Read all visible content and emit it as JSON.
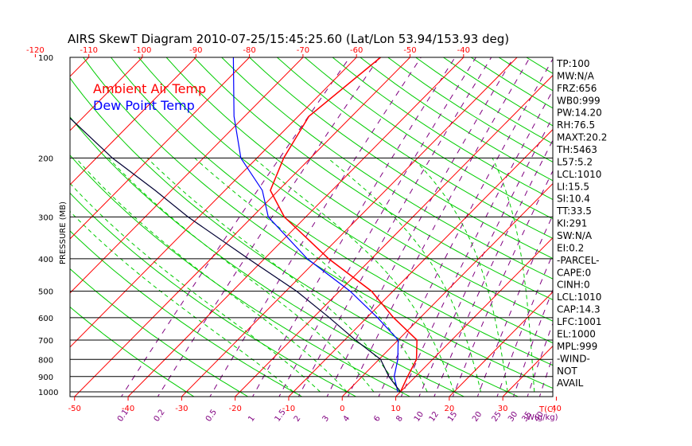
{
  "chart_data": {
    "type": "line",
    "title": "AIRS SkewT Diagram 2010-07-25/15:45:25.60 (Lat/Lon 53.94/153.93 deg)",
    "ylabel": "PRESSURE (MB)",
    "xlabel_bottom": "T(C)",
    "mixing_label": "W(g/kg)",
    "pressure_ticks": [
      100,
      200,
      300,
      400,
      500,
      600,
      700,
      800,
      900,
      1000
    ],
    "bottom_temp_ticks": [
      -50,
      -40,
      -30,
      -20,
      -10,
      0,
      10,
      20,
      30,
      40
    ],
    "top_temp_ticks": [
      -120,
      -110,
      -100,
      -90,
      -80,
      -70,
      -60,
      -50,
      -40
    ],
    "mixing_ratio_ticks": [
      "0.1",
      "0.2",
      "0.5",
      "1",
      "1.5",
      "2",
      "3",
      "4",
      "6",
      "8",
      "10",
      "12",
      "15",
      "20",
      "25",
      "30",
      "35",
      "40"
    ],
    "legend": [
      {
        "label": "Ambient Air Temp",
        "color": "#ff0000"
      },
      {
        "label": "Dew Point Temp",
        "color": "#0000ff"
      }
    ],
    "series": [
      {
        "name": "Ambient Air Temp",
        "color": "#ff0000",
        "points": [
          [
            100,
            -55.5
          ],
          [
            150,
            -58
          ],
          [
            200,
            -55
          ],
          [
            250,
            -51.5
          ],
          [
            300,
            -44
          ],
          [
            400,
            -28
          ],
          [
            500,
            -14
          ],
          [
            600,
            -5
          ],
          [
            700,
            3.5
          ],
          [
            800,
            7
          ],
          [
            900,
            8.5
          ],
          [
            1000,
            10
          ]
        ]
      },
      {
        "name": "Dew Point Temp",
        "color": "#0000ff",
        "points": [
          [
            100,
            -83
          ],
          [
            150,
            -72
          ],
          [
            200,
            -63
          ],
          [
            250,
            -53
          ],
          [
            300,
            -47
          ],
          [
            400,
            -32
          ],
          [
            500,
            -18
          ],
          [
            600,
            -8
          ],
          [
            700,
            0
          ],
          [
            800,
            3.5
          ],
          [
            900,
            6
          ],
          [
            1000,
            9.5
          ]
        ]
      },
      {
        "name": "Parcel",
        "color": "#000033",
        "points": [
          [
            150,
            -103
          ],
          [
            200,
            -87
          ],
          [
            250,
            -73
          ],
          [
            300,
            -62
          ],
          [
            400,
            -43
          ],
          [
            500,
            -28
          ],
          [
            600,
            -17
          ],
          [
            700,
            -8
          ],
          [
            800,
            0.3
          ],
          [
            900,
            5
          ],
          [
            1000,
            10
          ]
        ]
      }
    ],
    "indices": [
      "TP:100",
      "MW:N/A",
      "FRZ:656",
      "WB0:999",
      "PW:14.20",
      "RH:76.5",
      "MAXT:20.2",
      "TH:5463",
      "L57:5.2",
      "LCL:1010",
      "LI:15.5",
      "SI:10.4",
      "TT:33.5",
      "KI:291",
      "SW:N/A",
      "EI:0.2",
      "-PARCEL-",
      "CAPE:0",
      "CINH:0",
      "LCL:1010",
      "CAP:14.3",
      "LFC:1001",
      "EL:1000",
      "MPL:999",
      "-WIND-",
      "NOT",
      "AVAIL"
    ]
  }
}
